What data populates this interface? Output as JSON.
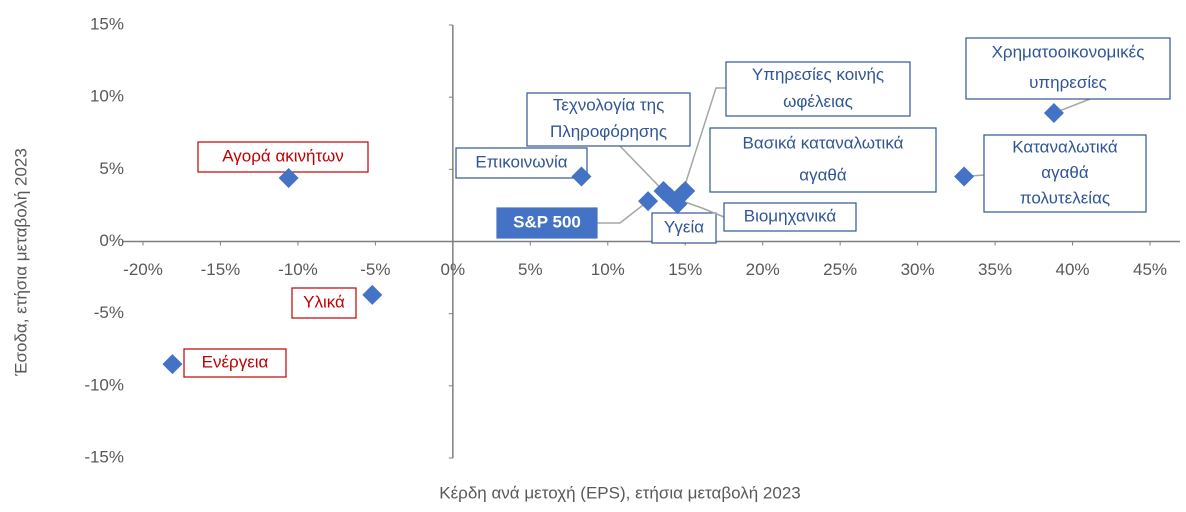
{
  "chart_data": {
    "type": "scatter",
    "x_label": "Κέρδη ανά μετοχή (EPS), ετήσια μεταβολή 2023",
    "y_label": "Έσοδα, ετήσια μεταβολή 2023",
    "labels": [
      [
        "Αγορά ακινήτων"
      ],
      [
        "Υλικά"
      ],
      [
        "Ενέργεια"
      ],
      [
        "Επικοινωνία"
      ],
      [
        "S&P 500"
      ],
      [
        "Τεχνολογία της",
        "Πληροφόρησης"
      ],
      [
        "Υγεία"
      ],
      [
        "Βιομηχανικά"
      ],
      [
        "Υπηρεσίες κοινής",
        "ωφέλειας"
      ],
      [
        "Βασικά καταναλωτικά",
        "αγαθά"
      ],
      [
        "Καταναλωτικά",
        "αγαθά",
        "πολυτελείας"
      ],
      [
        "Χρηματοοικονομικές",
        "υπηρεσίες"
      ]
    ],
    "x": [
      -10.6,
      -5.2,
      -18.1,
      8.3,
      12.6,
      13.6,
      14.5,
      14.0,
      14.8,
      15.0,
      33.0,
      38.8
    ],
    "y": [
      4.4,
      -3.7,
      -8.5,
      4.5,
      2.8,
      3.5,
      2.6,
      3.1,
      3.3,
      3.5,
      4.5,
      8.9
    ],
    "color": "#4472c4",
    "label_colors": [
      "#c00000",
      "#c00000",
      "#c00000",
      "#2f5597",
      "#4472c4",
      "#2f5597",
      "#2f5597",
      "#2f5597",
      "#2f5597",
      "#2f5597",
      "#2f5597",
      "#2f5597"
    ],
    "highlight_index": 4,
    "xlim": [
      -20,
      45
    ],
    "ylim": [
      -15,
      15
    ],
    "xticks": [
      {
        "value": -20,
        "label": "-20%"
      },
      {
        "value": -15,
        "label": "-15%"
      },
      {
        "value": -10,
        "label": "-10%"
      },
      {
        "value": -5,
        "label": "-5%"
      },
      {
        "value": 0,
        "label": "0%"
      },
      {
        "value": 5,
        "label": "5%"
      },
      {
        "value": 10,
        "label": "10%"
      },
      {
        "value": 15,
        "label": "15%"
      },
      {
        "value": 20,
        "label": "20%"
      },
      {
        "value": 25,
        "label": "25%"
      },
      {
        "value": 30,
        "label": "30%"
      },
      {
        "value": 35,
        "label": "35%"
      },
      {
        "value": 40,
        "label": "40%"
      },
      {
        "value": 45,
        "label": "45%"
      }
    ],
    "yticks": [
      {
        "value": -15,
        "label": "-15%"
      },
      {
        "value": -10,
        "label": "-10%"
      },
      {
        "value": -5,
        "label": "-5%"
      },
      {
        "value": 0,
        "label": "0%"
      },
      {
        "value": 5,
        "label": "5%"
      },
      {
        "value": 10,
        "label": "10%"
      },
      {
        "value": 15,
        "label": "15%"
      }
    ]
  }
}
